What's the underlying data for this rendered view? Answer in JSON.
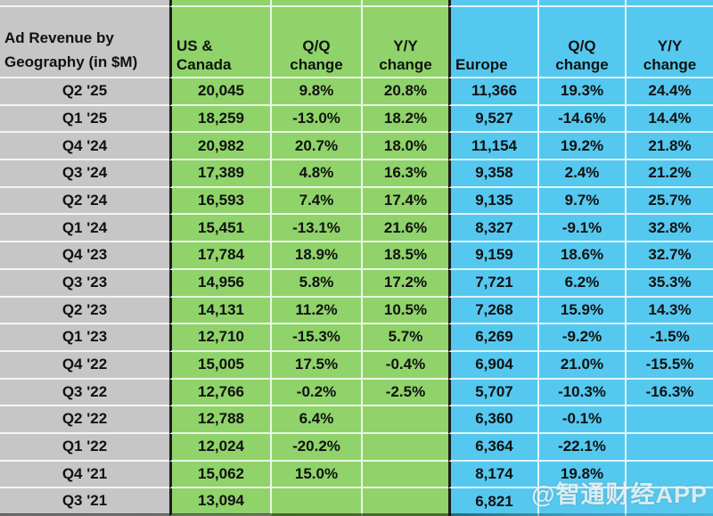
{
  "chart_data": {
    "type": "table",
    "title": "Ad Revenue by Geography (in $M)",
    "columns": [
      "US & Canada",
      "Q/Q change",
      "Y/Y change",
      "Europe",
      "Q/Q change",
      "Y/Y change"
    ],
    "rows": [
      [
        "Q2 '25",
        "20,045",
        "9.8%",
        "20.8%",
        "11,366",
        "19.3%",
        "24.4%"
      ],
      [
        "Q1 '25",
        "18,259",
        "-13.0%",
        "18.2%",
        "9,527",
        "-14.6%",
        "14.4%"
      ],
      [
        "Q4 '24",
        "20,982",
        "20.7%",
        "18.0%",
        "11,154",
        "19.2%",
        "21.8%"
      ],
      [
        "Q3 '24",
        "17,389",
        "4.8%",
        "16.3%",
        "9,358",
        "2.4%",
        "21.2%"
      ],
      [
        "Q2 '24",
        "16,593",
        "7.4%",
        "17.4%",
        "9,135",
        "9.7%",
        "25.7%"
      ],
      [
        "Q1 '24",
        "15,451",
        "-13.1%",
        "21.6%",
        "8,327",
        "-9.1%",
        "32.8%"
      ],
      [
        "Q4 '23",
        "17,784",
        "18.9%",
        "18.5%",
        "9,159",
        "18.6%",
        "32.7%"
      ],
      [
        "Q3 '23",
        "14,956",
        "5.8%",
        "17.2%",
        "7,721",
        "6.2%",
        "35.3%"
      ],
      [
        "Q2 '23",
        "14,131",
        "11.2%",
        "10.5%",
        "7,268",
        "15.9%",
        "14.3%"
      ],
      [
        "Q1 '23",
        "12,710",
        "-15.3%",
        "5.7%",
        "6,269",
        "-9.2%",
        "-1.5%"
      ],
      [
        "Q4 '22",
        "15,005",
        "17.5%",
        "-0.4%",
        "6,904",
        "21.0%",
        "-15.5%"
      ],
      [
        "Q3 '22",
        "12,766",
        "-0.2%",
        "-2.5%",
        "5,707",
        "-10.3%",
        "-16.3%"
      ],
      [
        "Q2 '22",
        "12,788",
        "6.4%",
        "",
        "6,360",
        "-0.1%",
        ""
      ],
      [
        "Q1 '22",
        "12,024",
        "-20.2%",
        "",
        "6,364",
        "-22.1%",
        ""
      ],
      [
        "Q4 '21",
        "15,062",
        "15.0%",
        "",
        "8,174",
        "19.8%",
        ""
      ],
      [
        "Q3 '21",
        "13,094",
        "",
        "",
        "6,821",
        "",
        ""
      ]
    ],
    "colors": {
      "quarter_column_bg": "#c6c6c6",
      "us_canada_section_bg": "#8fd36a",
      "europe_section_bg": "#55c8ef",
      "grid_line": "#ffffff",
      "section_divider": "#1d1d1d",
      "text": "#111111"
    },
    "grid": true,
    "legend_position": "none"
  },
  "watermark": {
    "text": "@智通财经APP"
  }
}
